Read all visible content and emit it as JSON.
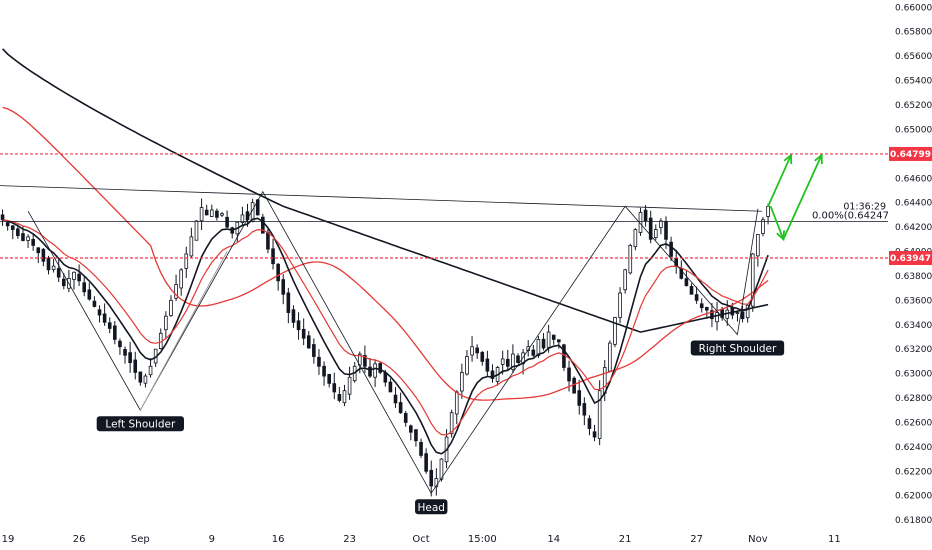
{
  "chart_data": {
    "type": "candlestick",
    "y_axis": {
      "side": "right",
      "ylim": [
        0.6176,
        0.6606
      ],
      "ticks": [
        "0.66000",
        "0.65800",
        "0.65600",
        "0.65400",
        "0.65200",
        "0.65000",
        "0.64800",
        "0.64600",
        "0.64400",
        "0.64200",
        "0.64000",
        "0.63800",
        "0.63600",
        "0.63400",
        "0.63200",
        "0.63000",
        "0.62800",
        "0.62600",
        "0.62400",
        "0.62200",
        "0.62000",
        "0.61800"
      ]
    },
    "x_axis": {
      "tick_labels": [
        {
          "label": "19",
          "index": 0
        },
        {
          "label": "26",
          "index": 15
        },
        {
          "label": "Sep",
          "index": 27
        },
        {
          "label": "9",
          "index": 41
        },
        {
          "label": "16",
          "index": 54
        },
        {
          "label": "23",
          "index": 68
        },
        {
          "label": "Oct",
          "index": 82
        },
        {
          "label": "15:00",
          "index": 94
        },
        {
          "label": "14",
          "index": 108
        },
        {
          "label": "21",
          "index": 122
        },
        {
          "label": "27",
          "index": 136
        },
        {
          "label": "Nov",
          "index": 148
        },
        {
          "label": "11",
          "index": 163
        }
      ],
      "n_slots": 174
    },
    "candles_close": [
      0.6426,
      0.6421,
      0.6418,
      0.6413,
      0.6409,
      0.6412,
      0.6405,
      0.6399,
      0.6392,
      0.6385,
      0.6388,
      0.6379,
      0.6372,
      0.6378,
      0.6383,
      0.6376,
      0.6367,
      0.6361,
      0.6355,
      0.6348,
      0.6342,
      0.6337,
      0.6328,
      0.6322,
      0.6315,
      0.6309,
      0.6301,
      0.6293,
      0.6298,
      0.6306,
      0.632,
      0.6333,
      0.6347,
      0.636,
      0.6373,
      0.6385,
      0.6398,
      0.6412,
      0.6425,
      0.6436,
      0.643,
      0.6434,
      0.6428,
      0.6431,
      0.642,
      0.6415,
      0.6424,
      0.643,
      0.6426,
      0.644,
      0.643,
      0.6415,
      0.6402,
      0.639,
      0.6376,
      0.6365,
      0.635,
      0.6342,
      0.6336,
      0.6329,
      0.6321,
      0.6314,
      0.6306,
      0.6298,
      0.6292,
      0.6285,
      0.6278,
      0.6286,
      0.6297,
      0.6306,
      0.6316,
      0.6306,
      0.6298,
      0.6308,
      0.6301,
      0.6293,
      0.6285,
      0.6276,
      0.6268,
      0.626,
      0.6252,
      0.6245,
      0.6233,
      0.622,
      0.6208,
      0.6214,
      0.623,
      0.6248,
      0.6268,
      0.6285,
      0.6301,
      0.6314,
      0.6322,
      0.6317,
      0.631,
      0.6302,
      0.6296,
      0.6305,
      0.6312,
      0.6306,
      0.6316,
      0.6309,
      0.6317,
      0.6322,
      0.6315,
      0.6328,
      0.6321,
      0.6334,
      0.6328,
      0.6326,
      0.6305,
      0.6294,
      0.6284,
      0.6274,
      0.6266,
      0.6255,
      0.6248,
      0.6286,
      0.6305,
      0.6325,
      0.6346,
      0.6366,
      0.6385,
      0.6405,
      0.6418,
      0.6432,
      0.6425,
      0.641,
      0.6418,
      0.6425,
      0.641,
      0.6396,
      0.6388,
      0.6378,
      0.6372,
      0.6365,
      0.636,
      0.6354,
      0.6352,
      0.6345,
      0.635,
      0.6346,
      0.6352,
      0.6348,
      0.635,
      0.6345,
      0.6356,
      0.6398,
      0.6414,
      0.6426,
      0.6437
    ],
    "candles_ohlc_note": "OHLC estimated; closes listed, opens/highs/lows derived by the drawing script",
    "moving_averages": [
      {
        "color": "#131722",
        "values_approx": "200-period, from 0.6566 at left to 0.6356 at right"
      },
      {
        "color": "#e53935",
        "values_approx": "100-period red"
      },
      {
        "color": "#131722",
        "values_approx": "short EMA black"
      },
      {
        "color": "#e53935",
        "values_approx": "short EMA red"
      }
    ],
    "horizontal_levels": [
      {
        "price": 0.64799,
        "label": "0.64799",
        "color": "#f23645",
        "style": "dotted"
      },
      {
        "price": 0.63947,
        "label": "0.63947",
        "color": "#f23645",
        "style": "dotted"
      },
      {
        "price": 0.64247,
        "label": "0.00%(0.64247)",
        "color": "#131722",
        "style": "solid"
      }
    ],
    "neckline": {
      "from": [
        0,
        0.6454
      ],
      "to": [
        148,
        0.6433
      ]
    },
    "countdown": "01:36:29",
    "annotations": [
      {
        "text": "Left Shoulder",
        "index": 27,
        "price": 0.627
      },
      {
        "text": "Head",
        "index": 84,
        "price": 0.6202
      },
      {
        "text": "Right Shoulder",
        "index": 144,
        "price": 0.6332
      }
    ],
    "arrows_color": "#1ec31e",
    "grid": false,
    "legend": "none"
  }
}
